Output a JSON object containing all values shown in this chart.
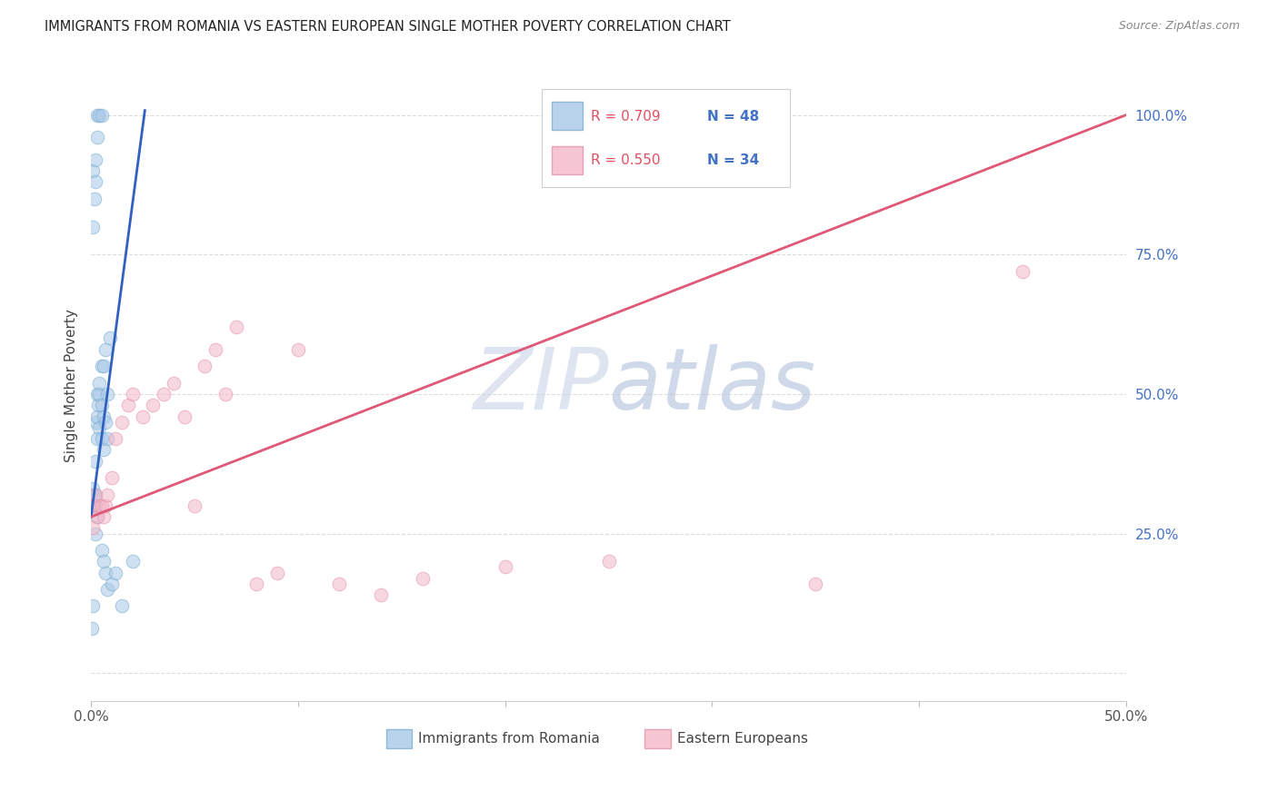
{
  "title": "IMMIGRANTS FROM ROMANIA VS EASTERN EUROPEAN SINGLE MOTHER POVERTY CORRELATION CHART",
  "source": "Source: ZipAtlas.com",
  "ylabel": "Single Mother Poverty",
  "legend_blue_label": "Immigrants from Romania",
  "legend_pink_label": "Eastern Europeans",
  "blue_color": "#a8c8e8",
  "blue_edge_color": "#7aaed0",
  "pink_color": "#f4b8c8",
  "pink_edge_color": "#e890a8",
  "blue_line_color": "#3060c0",
  "pink_line_color": "#e05878",
  "watermark_zip_color": "#c8d4e8",
  "watermark_atlas_color": "#b0c0dc",
  "background_color": "#ffffff",
  "grid_color": "#dddddd",
  "title_color": "#222222",
  "right_tick_color": "#4472c4",
  "xlim": [
    0.0,
    0.5
  ],
  "ylim": [
    -0.05,
    1.08
  ],
  "blue_x": [
    0.0003,
    0.0005,
    0.0007,
    0.001,
    0.001,
    0.001,
    0.001,
    0.0015,
    0.002,
    0.002,
    0.002,
    0.002,
    0.0025,
    0.003,
    0.003,
    0.003,
    0.003,
    0.0035,
    0.004,
    0.004,
    0.004,
    0.005,
    0.005,
    0.005,
    0.006,
    0.006,
    0.006,
    0.007,
    0.007,
    0.008,
    0.008,
    0.009,
    0.001,
    0.0015,
    0.002,
    0.002,
    0.003,
    0.003,
    0.004,
    0.005,
    0.005,
    0.006,
    0.007,
    0.008,
    0.01,
    0.012,
    0.015,
    0.02
  ],
  "blue_y": [
    0.3,
    0.08,
    0.12,
    0.3,
    0.32,
    0.33,
    0.9,
    0.3,
    0.25,
    0.3,
    0.32,
    0.38,
    0.45,
    0.28,
    0.42,
    0.46,
    0.5,
    0.48,
    0.44,
    0.5,
    0.52,
    0.42,
    0.48,
    0.55,
    0.4,
    0.46,
    0.55,
    0.45,
    0.58,
    0.42,
    0.5,
    0.6,
    0.8,
    0.85,
    0.88,
    0.92,
    0.96,
    1.0,
    1.0,
    1.0,
    0.22,
    0.2,
    0.18,
    0.15,
    0.16,
    0.18,
    0.12,
    0.2
  ],
  "pink_x": [
    0.001,
    0.001,
    0.002,
    0.003,
    0.004,
    0.005,
    0.006,
    0.007,
    0.008,
    0.01,
    0.012,
    0.015,
    0.018,
    0.02,
    0.025,
    0.03,
    0.035,
    0.04,
    0.045,
    0.05,
    0.055,
    0.06,
    0.065,
    0.07,
    0.08,
    0.09,
    0.1,
    0.12,
    0.14,
    0.16,
    0.2,
    0.25,
    0.35,
    0.45
  ],
  "pink_y": [
    0.26,
    0.3,
    0.32,
    0.28,
    0.3,
    0.3,
    0.28,
    0.3,
    0.32,
    0.35,
    0.42,
    0.45,
    0.48,
    0.5,
    0.46,
    0.48,
    0.5,
    0.52,
    0.46,
    0.3,
    0.55,
    0.58,
    0.5,
    0.62,
    0.16,
    0.18,
    0.58,
    0.16,
    0.14,
    0.17,
    0.19,
    0.2,
    0.16,
    0.72
  ],
  "blue_slope": 28.0,
  "blue_intercept": 0.28,
  "blue_line_x0": 0.0,
  "blue_line_x1": 0.026,
  "pink_slope": 1.44,
  "pink_intercept": 0.28,
  "pink_line_x0": 0.0,
  "pink_line_x1": 0.5,
  "marker_size": 110,
  "marker_alpha": 0.55
}
